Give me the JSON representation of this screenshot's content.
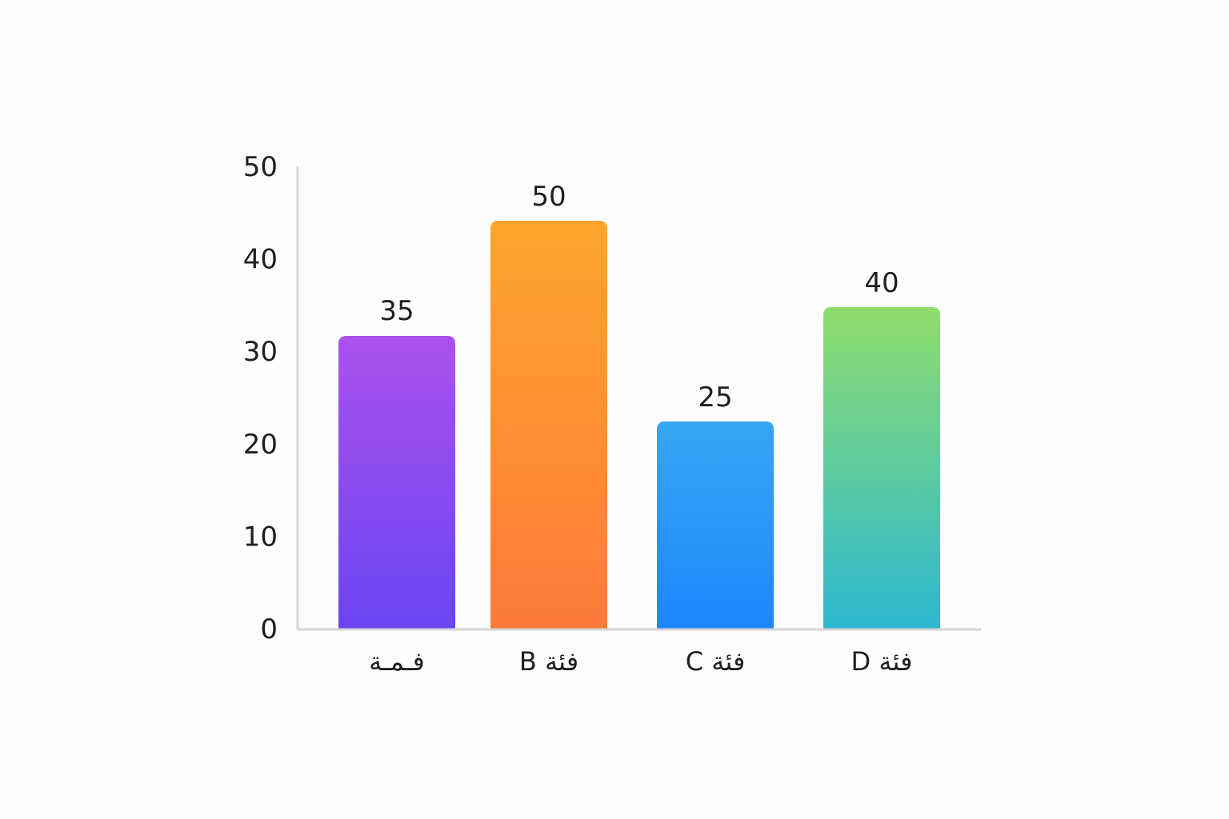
{
  "chart_data": {
    "type": "bar",
    "categories": [
      "فـمـة",
      "فئة B",
      "فئة C",
      "فئة D"
    ],
    "values": [
      35,
      50,
      25,
      40
    ],
    "data_labels": [
      "35",
      "50",
      "25",
      "40"
    ],
    "y_ticks": [
      0,
      10,
      20,
      30,
      40,
      50
    ],
    "ylim": [
      0,
      50
    ],
    "grid": false,
    "bar_gradients": [
      {
        "top": "#ab51ec",
        "bottom": "#6a45f3"
      },
      {
        "top": "#fea52d",
        "bottom": "#fe7a3a"
      },
      {
        "top": "#37a6f3",
        "bottom": "#1f86fd"
      },
      {
        "top": "#90dd6d",
        "bottom": "#2cb8d1"
      }
    ]
  }
}
